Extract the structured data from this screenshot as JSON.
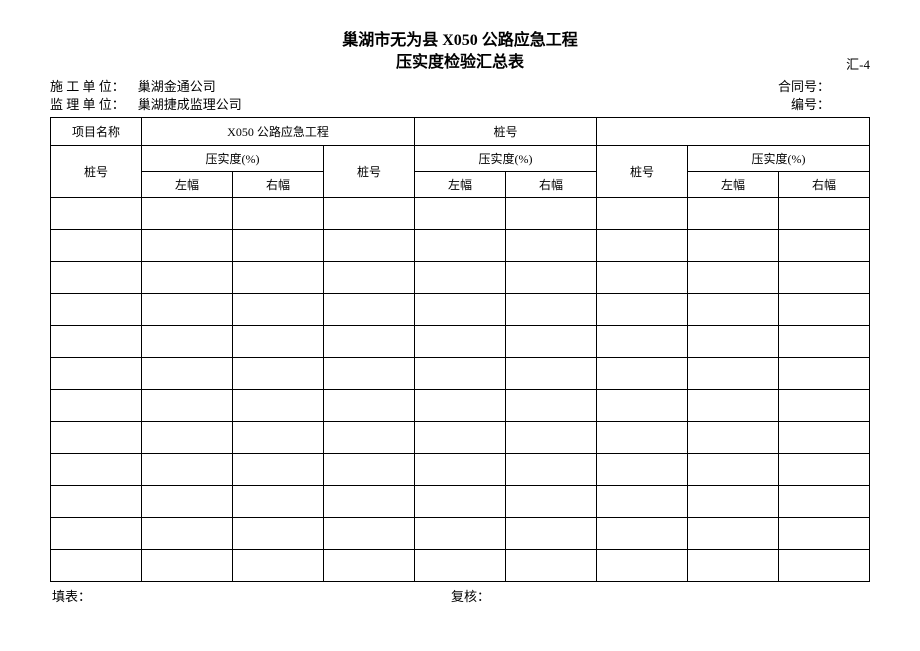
{
  "header": {
    "title_line1": "巢湖市无为县 X050 公路应急工程",
    "title_line2": "压实度检验汇总表",
    "doc_code": "汇-4"
  },
  "meta": {
    "construction_label": "施 工 单 位：",
    "construction_value": "巢湖金通公司",
    "supervision_label": "监 理 单 位：",
    "supervision_value": "巢湖捷成监理公司",
    "contract_label": "合同号：",
    "contract_value": "",
    "serial_label": "编号：",
    "serial_value": ""
  },
  "table": {
    "project_name_label": "项目名称",
    "project_name_value": "X050 公路应急工程",
    "pile_no_label_top": "桩号",
    "pile_no_value_top": "",
    "col_pile": "桩号",
    "col_compaction": "压实度(%)",
    "col_left": "左幅",
    "col_right": "右幅",
    "data_rows": 12,
    "border_color": "#000000",
    "background_color": "#ffffff",
    "text_color": "#000000",
    "header_fontsize": 12,
    "data_row_height": 32
  },
  "footer": {
    "fill_label": "填表：",
    "fill_value": "",
    "review_label": "复核：",
    "review_value": ""
  }
}
